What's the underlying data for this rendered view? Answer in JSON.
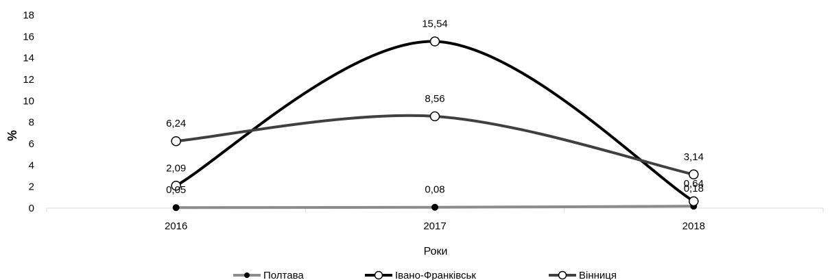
{
  "chart_data": {
    "type": "line",
    "title": "",
    "xlabel": "Роки",
    "ylabel": "%",
    "categories": [
      "2016",
      "2017",
      "2018"
    ],
    "ylim": [
      0,
      18
    ],
    "yticks": [
      "0",
      "2",
      "4",
      "6",
      "8",
      "10",
      "12",
      "14",
      "16",
      "18"
    ],
    "smooth": true,
    "grid": false,
    "legend_position": "bottom",
    "series": [
      {
        "name": "Полтава",
        "values": [
          0.05,
          0.08,
          0.18
        ],
        "labels": [
          "0,05",
          "0,08",
          "0,18"
        ],
        "color": "#8c8c8c",
        "marker": "filled-circle",
        "marker_color": "#000000"
      },
      {
        "name": "Івано-Франківськ",
        "values": [
          2.09,
          15.54,
          0.64
        ],
        "labels": [
          "2,09",
          "15,54",
          "0,64"
        ],
        "color": "#000000",
        "marker": "open-circle",
        "marker_color": "#ffffff"
      },
      {
        "name": "Вінниця",
        "values": [
          6.24,
          8.56,
          3.14
        ],
        "labels": [
          "6,24",
          "8,56",
          "3,14"
        ],
        "color": "#404040",
        "marker": "open-circle",
        "marker_color": "#ffffff"
      }
    ]
  }
}
